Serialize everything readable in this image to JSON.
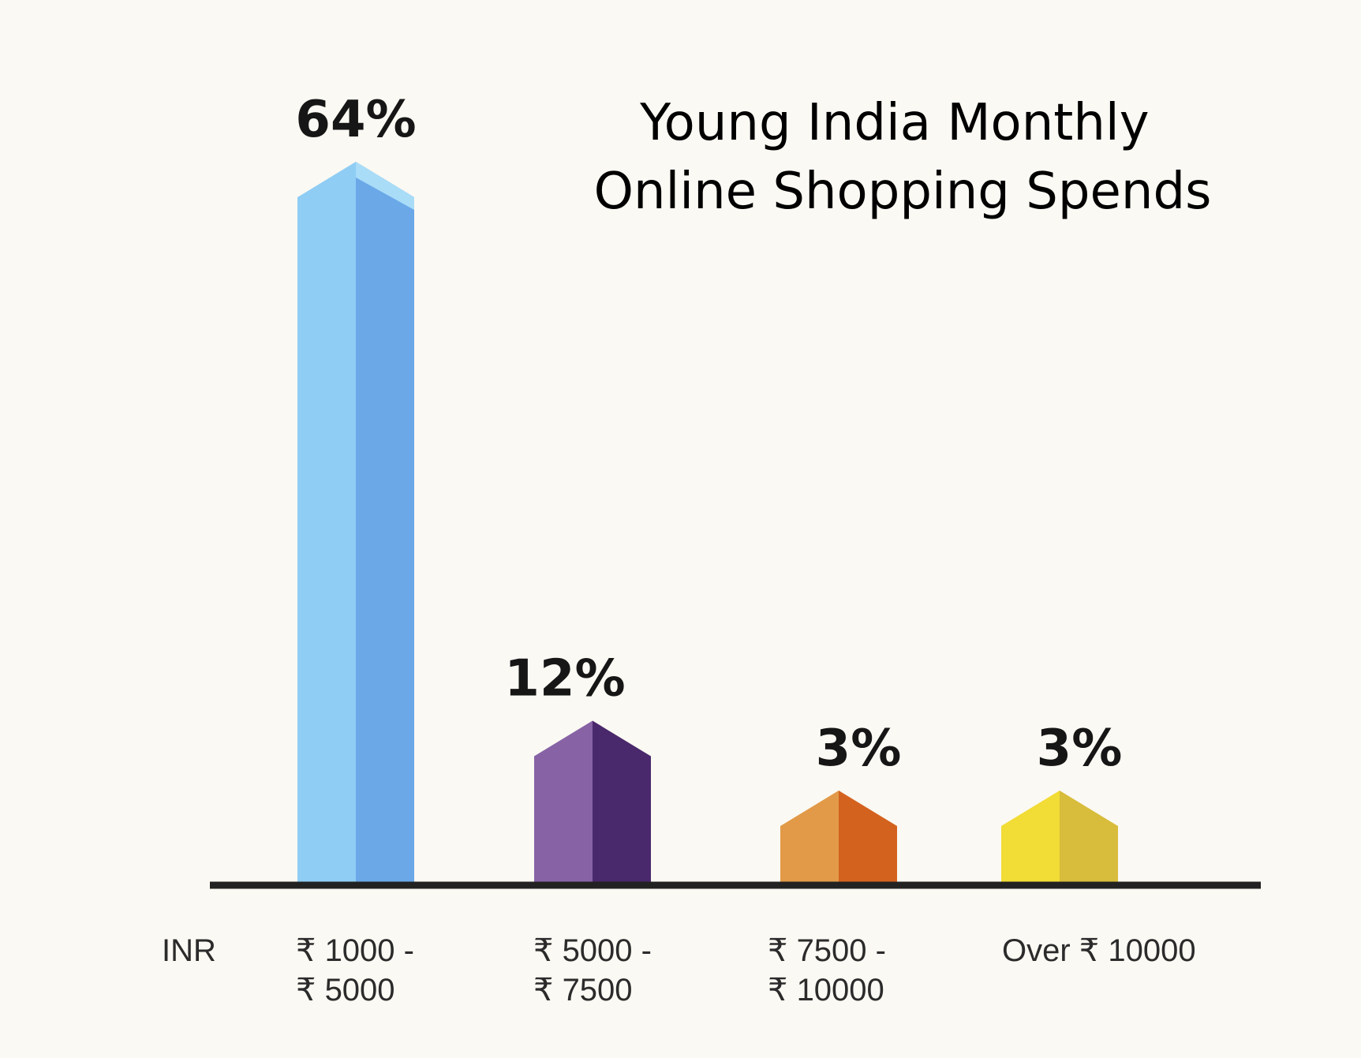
{
  "chart_data": {
    "type": "bar",
    "title_lines": [
      "Young India Monthly",
      "Online Shopping Spends"
    ],
    "xlabel": "",
    "ylabel": "",
    "x_unit_label": "INR",
    "categories": [
      "₹ 1000 - ₹ 5000",
      "₹ 5000 - ₹ 7500",
      "₹ 7500 - ₹ 10000",
      "Over ₹ 10000"
    ],
    "category_label_lines": [
      [
        "₹ 1000 -",
        "₹ 5000"
      ],
      [
        "₹ 5000 -",
        "₹ 7500"
      ],
      [
        "₹ 7500 -",
        "₹ 10000"
      ],
      [
        "Over ₹ 10000"
      ]
    ],
    "values": [
      64,
      12,
      3,
      3
    ],
    "data_labels": [
      "64%",
      "12%",
      "3%",
      "3%"
    ],
    "ylim": [
      0,
      64
    ],
    "grid": false,
    "legend": "none",
    "bar_colors": [
      {
        "light": "#8fcdf4",
        "dark": "#6aa8e8",
        "cap": "#a9dcf7"
      },
      {
        "light": "#8763a6",
        "dark": "#4a286c",
        "cap": "#8763a6"
      },
      {
        "light": "#e29a48",
        "dark": "#d4621f",
        "cap": "#e29a48"
      },
      {
        "light": "#f2dc36",
        "dark": "#d8bc3b",
        "cap": "#f2dc36"
      }
    ],
    "axis_color": "#222222"
  }
}
